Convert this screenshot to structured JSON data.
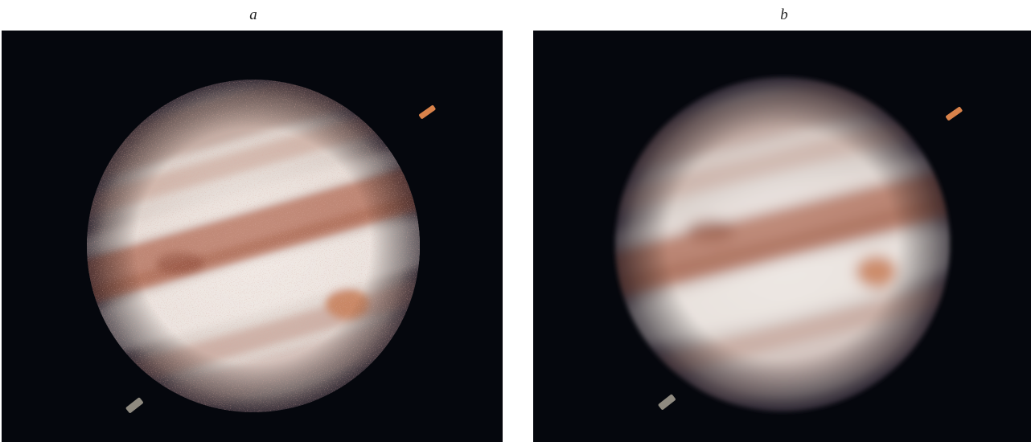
{
  "panels": [
    {
      "label": "a",
      "subject": "Jupiter",
      "processing": "sharp",
      "moons": 2,
      "great_red_spot": true
    },
    {
      "label": "b",
      "subject": "Jupiter",
      "processing": "smoothed",
      "moons": 2,
      "great_red_spot": true
    }
  ],
  "colors": {
    "background": "#05070d",
    "planet_light": "#e8e2dc",
    "belt_brown": "#b47258",
    "red_spot": "#c9835e"
  }
}
